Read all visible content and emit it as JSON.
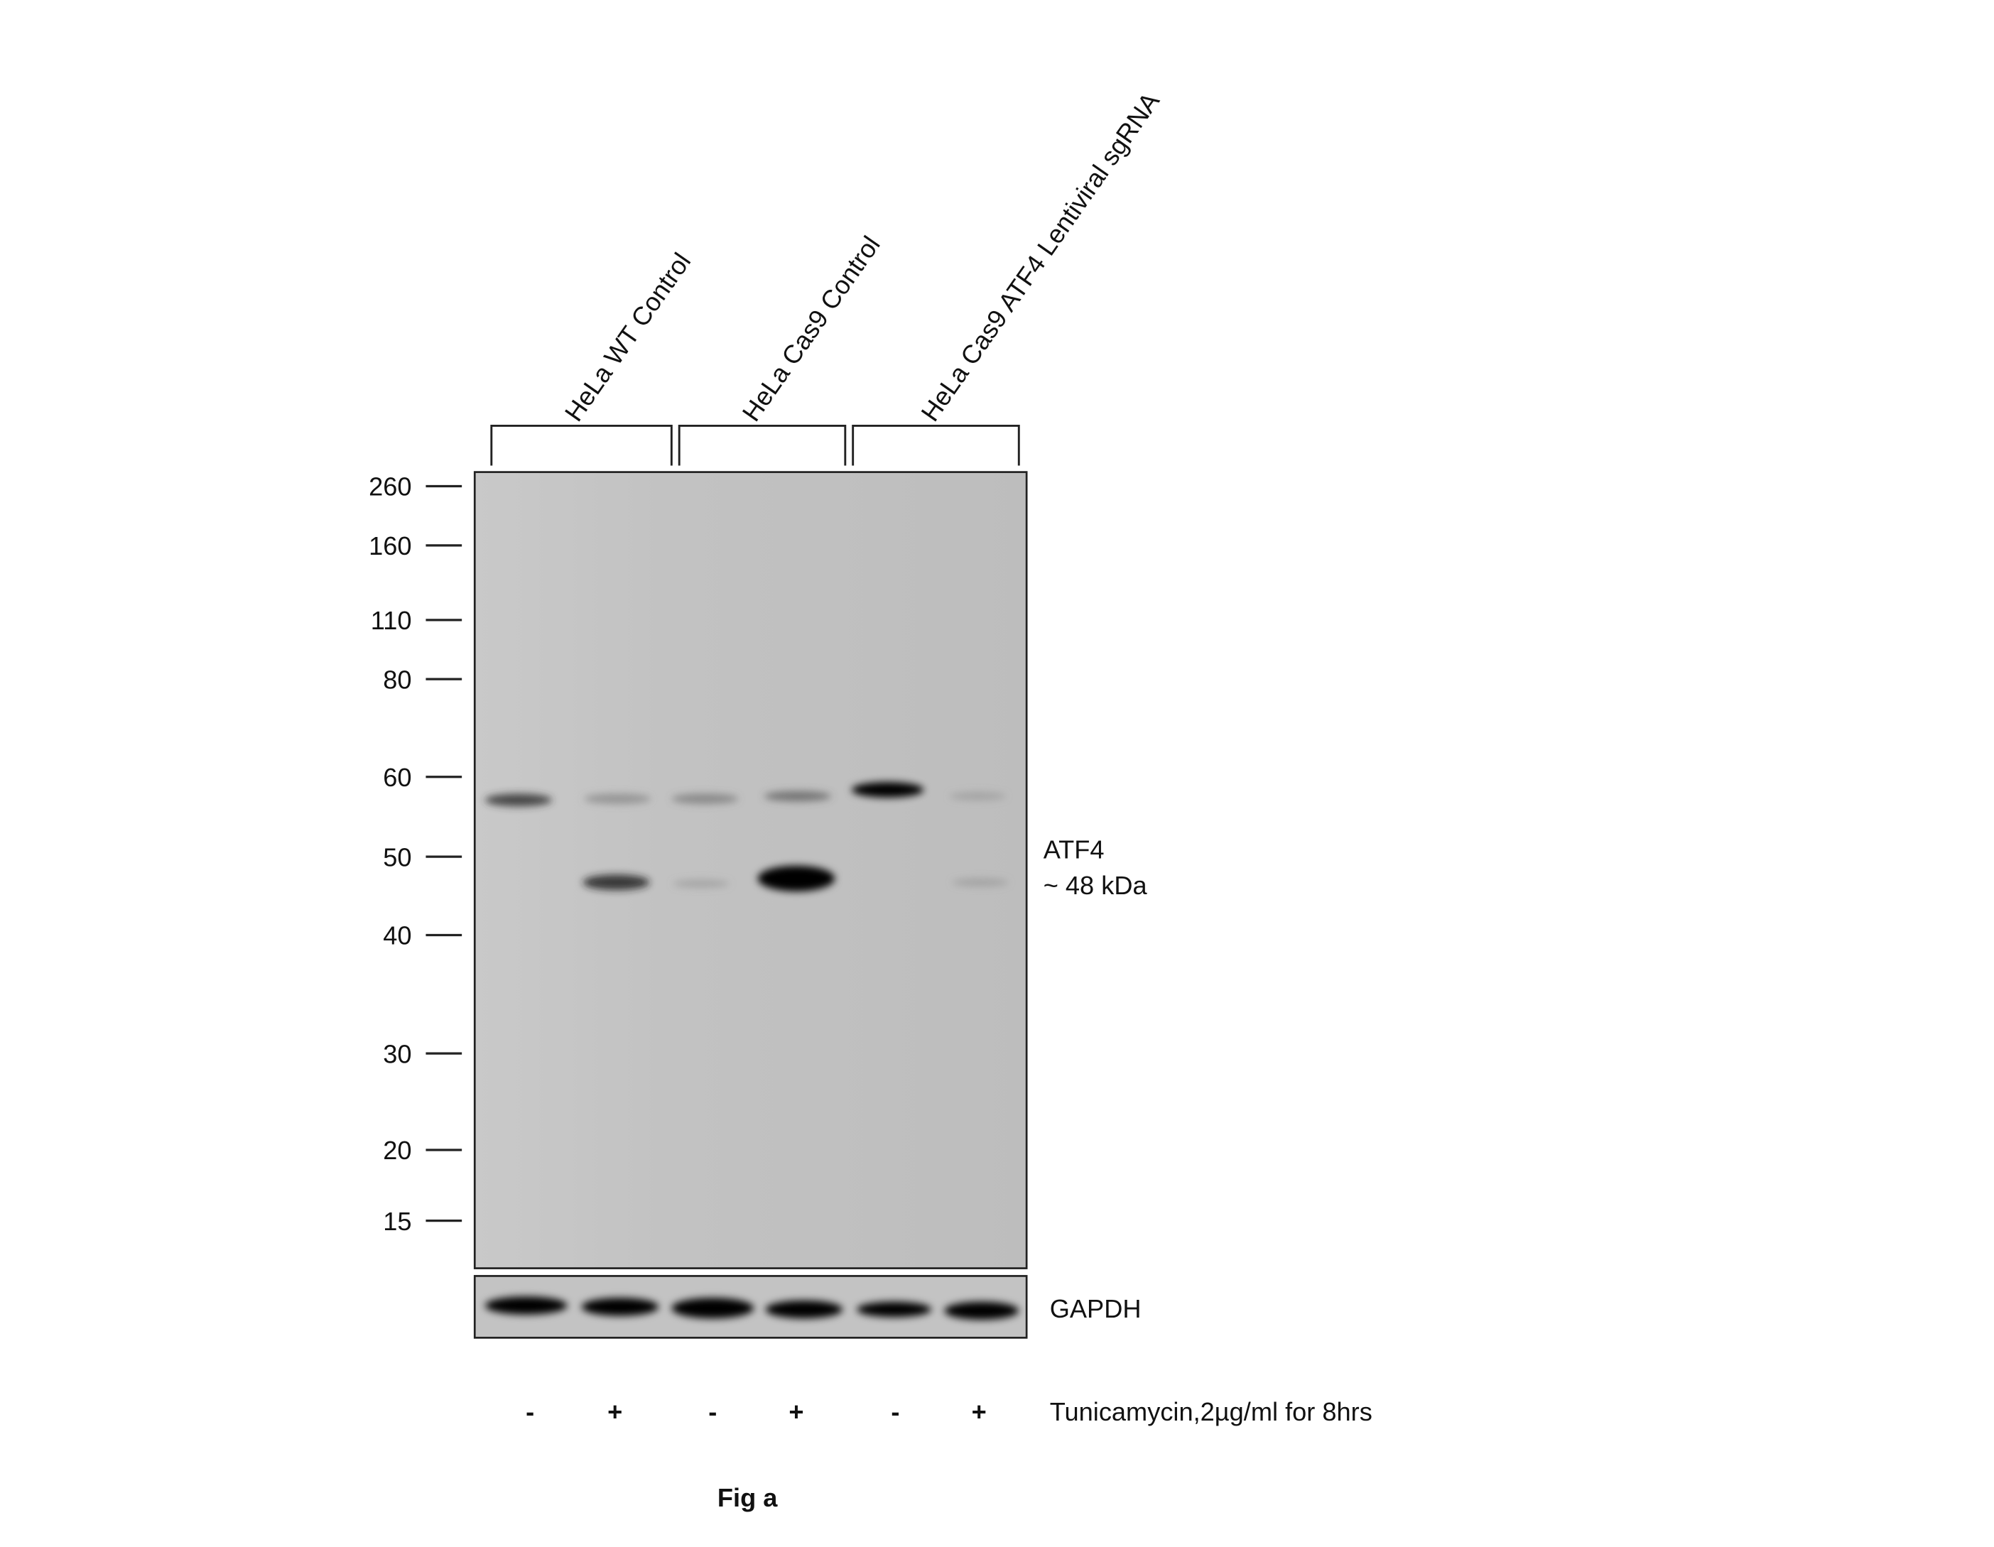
{
  "groups": [
    {
      "label": "HeLa WT Control"
    },
    {
      "label": "HeLa Cas9 Control"
    },
    {
      "label": "HeLa Cas9 ATF4 Lentiviral sgRNA"
    }
  ],
  "markers": [
    "260",
    "160",
    "110",
    "80",
    "60",
    "50",
    "40",
    "30",
    "20",
    "15"
  ],
  "target": {
    "name": "ATF4",
    "size": "~ 48 kDa"
  },
  "loading_control": "GAPDH",
  "treatment": {
    "signs": [
      "-",
      "+",
      "-",
      "+",
      "-",
      "+"
    ],
    "label": "Tunicamycin,2µg/ml for 8hrs"
  },
  "caption": "Fig a"
}
